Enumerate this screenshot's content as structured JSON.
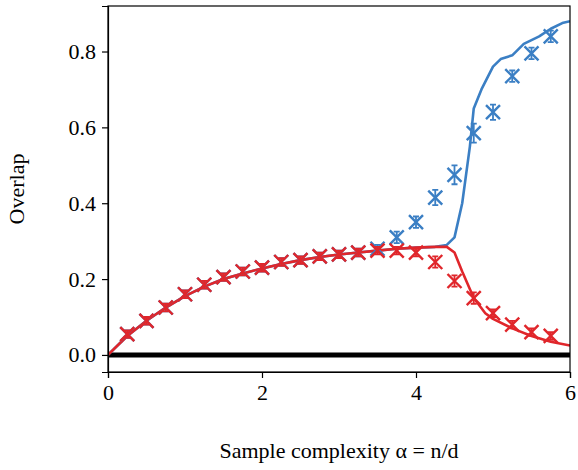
{
  "chart_data": {
    "type": "line",
    "x_label": "Sample complexity α = n/d",
    "y_label": "Overlap",
    "xlim": [
      0,
      6
    ],
    "ylim": [
      -0.045,
      0.92
    ],
    "xticks": [
      0,
      2,
      4,
      6
    ],
    "yticks": [
      {
        "value": 0,
        "label": "0.0"
      },
      {
        "value": 0.2,
        "label": "0.2"
      },
      {
        "value": 0.4,
        "label": "0.4"
      },
      {
        "value": 0.6,
        "label": "0.6"
      },
      {
        "value": 0.8,
        "label": "0.8"
      }
    ],
    "series": [
      {
        "type": "line",
        "color": "#000000",
        "x": [
          0,
          6
        ],
        "values": [
          0,
          0
        ]
      },
      {
        "type": "line",
        "color": "#3b7fc4",
        "x": [
          0,
          0.25,
          0.5,
          0.75,
          1,
          1.25,
          1.5,
          1.75,
          2,
          2.25,
          2.5,
          2.75,
          3,
          3.25,
          3.5,
          3.75,
          4,
          4.25,
          4.4,
          4.5,
          4.6,
          4.7,
          4.75,
          4.85,
          5,
          5.1,
          5.25,
          5.4,
          5.5,
          5.6,
          5.75,
          5.9,
          6
        ],
        "values": [
          0,
          0.05,
          0.09,
          0.125,
          0.155,
          0.18,
          0.2,
          0.215,
          0.228,
          0.24,
          0.25,
          0.258,
          0.265,
          0.27,
          0.275,
          0.28,
          0.283,
          0.285,
          0.29,
          0.31,
          0.4,
          0.55,
          0.65,
          0.7,
          0.76,
          0.78,
          0.79,
          0.82,
          0.83,
          0.84,
          0.86,
          0.875,
          0.88
        ]
      },
      {
        "type": "line",
        "color": "#e0262b",
        "x": [
          0,
          0.25,
          0.5,
          0.75,
          1,
          1.25,
          1.5,
          1.75,
          2,
          2.25,
          2.5,
          2.75,
          3,
          3.25,
          3.5,
          3.75,
          4,
          4.25,
          4.4,
          4.5,
          4.6,
          4.75,
          4.9,
          5,
          5.25,
          5.5,
          5.75,
          6
        ],
        "values": [
          0,
          0.05,
          0.09,
          0.125,
          0.155,
          0.18,
          0.2,
          0.215,
          0.228,
          0.24,
          0.25,
          0.258,
          0.265,
          0.27,
          0.275,
          0.28,
          0.283,
          0.285,
          0.285,
          0.27,
          0.22,
          0.15,
          0.11,
          0.095,
          0.07,
          0.05,
          0.035,
          0.025
        ]
      },
      {
        "type": "scatter",
        "marker": "x",
        "color": "#3b7fc4",
        "x": [
          0.25,
          0.5,
          0.75,
          1,
          1.25,
          1.5,
          1.75,
          2,
          2.25,
          2.5,
          2.75,
          3,
          3.25,
          3.5,
          3.75,
          4,
          4.25,
          4.5,
          4.75,
          5,
          5.25,
          5.5,
          5.75
        ],
        "values": [
          0.055,
          0.09,
          0.125,
          0.16,
          0.185,
          0.205,
          0.22,
          0.23,
          0.245,
          0.25,
          0.26,
          0.265,
          0.27,
          0.28,
          0.31,
          0.35,
          0.415,
          0.475,
          0.585,
          0.64,
          0.735,
          0.795,
          0.84
        ],
        "errors": [
          0.01,
          0.01,
          0.01,
          0.01,
          0.01,
          0.01,
          0.01,
          0.01,
          0.01,
          0.01,
          0.01,
          0.01,
          0.01,
          0.01,
          0.015,
          0.015,
          0.02,
          0.025,
          0.025,
          0.02,
          0.015,
          0.015,
          0.015
        ]
      },
      {
        "type": "scatter",
        "marker": "x",
        "color": "#e0262b",
        "x": [
          0.25,
          0.5,
          0.75,
          1,
          1.25,
          1.5,
          1.75,
          2,
          2.25,
          2.5,
          2.75,
          3,
          3.25,
          3.5,
          3.75,
          4,
          4.25,
          4.5,
          4.75,
          5,
          5.25,
          5.5,
          5.75
        ],
        "values": [
          0.055,
          0.09,
          0.125,
          0.16,
          0.185,
          0.205,
          0.22,
          0.23,
          0.245,
          0.25,
          0.26,
          0.265,
          0.27,
          0.275,
          0.275,
          0.27,
          0.245,
          0.195,
          0.15,
          0.11,
          0.08,
          0.06,
          0.05
        ],
        "errors": [
          0.01,
          0.01,
          0.01,
          0.01,
          0.01,
          0.01,
          0.01,
          0.01,
          0.01,
          0.01,
          0.01,
          0.01,
          0.01,
          0.01,
          0.01,
          0.01,
          0.015,
          0.015,
          0.015,
          0.01,
          0.01,
          0.01,
          0.01
        ]
      }
    ]
  }
}
